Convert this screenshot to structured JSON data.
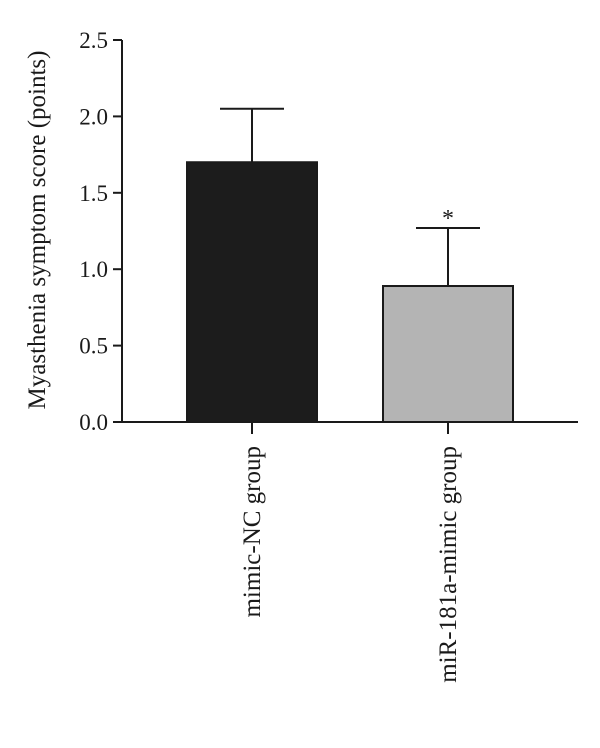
{
  "chart_data": {
    "type": "bar",
    "categories": [
      "mimic-NC group",
      "miR-181a-mimic group"
    ],
    "values": [
      1.7,
      0.89
    ],
    "error_upper": [
      2.05,
      1.27
    ],
    "significance": [
      "",
      "*"
    ],
    "bar_colors": [
      "#1c1c1c",
      "#b4b4b4"
    ],
    "xlabel": "",
    "ylabel": "Myasthenia symptom score (points)",
    "ylim": [
      0,
      2.5
    ],
    "yticks": [
      0.0,
      0.5,
      1.0,
      1.5,
      2.0,
      2.5
    ],
    "ytick_labels": [
      "0.0",
      "0.5",
      "1.0",
      "1.5",
      "2.0",
      "2.5"
    ],
    "grid": false,
    "legend": "none"
  }
}
